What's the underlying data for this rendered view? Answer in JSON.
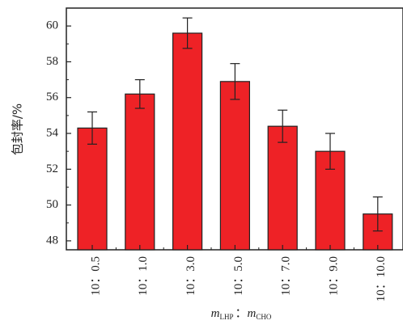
{
  "chart_data": {
    "type": "bar",
    "categories": [
      "10：0.5",
      "10：1.0",
      "10：3.0",
      "10：5.0",
      "10：7.0",
      "10：9.0",
      "10：10.0"
    ],
    "values": [
      54.3,
      56.2,
      59.6,
      56.9,
      54.4,
      53.0,
      49.5
    ],
    "errors": [
      0.9,
      0.8,
      0.85,
      1.0,
      0.9,
      1.0,
      0.95
    ],
    "ylim": [
      47.5,
      61
    ],
    "yticks": [
      "48",
      "50",
      "52",
      "54",
      "56",
      "58",
      "60"
    ],
    "ylabel": "包封率/%",
    "xlabel": {
      "m1": "m",
      "sub1": "LHP",
      "sep": "：",
      "m2": "m",
      "sub2": "CHO"
    },
    "bar_color": "#ee2226",
    "bar_edge": "#222222"
  }
}
